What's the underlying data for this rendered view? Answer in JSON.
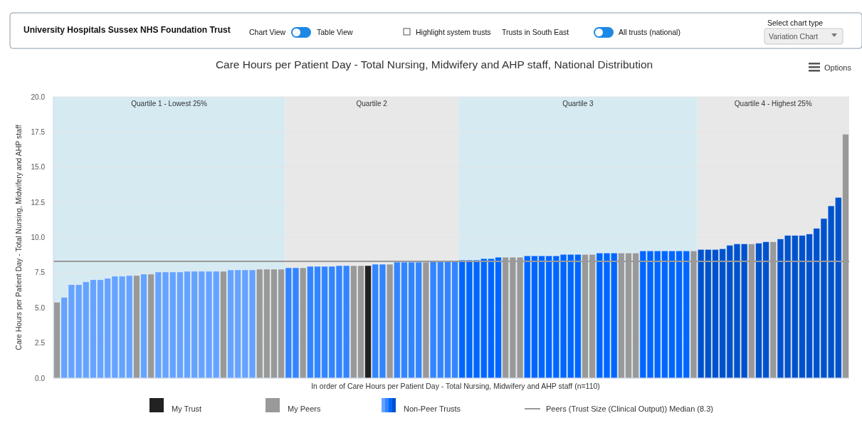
{
  "chart_data": {
    "type": "bar",
    "stacked": true,
    "title": "Care Hours per Patient Day - Total Nursing, Midwifery and AHP staff, National Distribution",
    "xlabel": "In order of Care Hours per Patient Day - Total Nursing, Midwifery and AHP staff (n=110)",
    "ylabel": "Care Hours per Patient Day - Total Nursing, Midwifery and AHP staff",
    "categories": [
      null,
      null,
      null,
      null,
      null,
      null,
      null,
      null,
      null,
      null,
      null,
      null,
      null,
      null,
      null,
      null,
      null,
      null,
      null,
      null,
      null,
      null,
      null,
      null,
      null,
      null,
      null,
      null,
      null,
      null,
      null,
      null,
      null,
      null,
      null,
      null,
      null,
      null,
      null,
      null,
      null,
      null,
      null,
      null,
      null,
      null,
      null,
      null,
      null,
      null,
      null,
      null,
      null,
      null,
      null,
      null,
      null,
      null,
      null,
      null,
      null,
      null,
      null,
      null,
      null,
      null,
      null,
      null,
      null,
      null,
      null,
      null,
      null,
      null,
      null,
      null,
      null,
      null,
      null,
      null,
      null,
      null,
      null,
      null,
      null,
      null,
      null,
      null,
      null,
      null,
      null,
      null,
      null,
      null,
      null,
      null,
      null,
      null,
      null,
      null,
      null,
      null,
      null,
      null,
      null,
      null,
      null,
      null,
      null,
      null
    ],
    "series": [
      {
        "name": "My Trust",
        "color": "#222222",
        "values": [
          null,
          null,
          null,
          null,
          null,
          null,
          null,
          null,
          null,
          null,
          null,
          null,
          null,
          null,
          null,
          null,
          null,
          null,
          null,
          null,
          null,
          null,
          null,
          null,
          null,
          null,
          null,
          null,
          null,
          null,
          null,
          null,
          null,
          null,
          null,
          null,
          null,
          null,
          null,
          null,
          null,
          null,
          null,
          8.0,
          null,
          null,
          null,
          null,
          null,
          null,
          null,
          null,
          null,
          null,
          null,
          null,
          null,
          null,
          null,
          null,
          null,
          null,
          null,
          null,
          null,
          null,
          null,
          null,
          null,
          null,
          null,
          null,
          null,
          null,
          null,
          null,
          null,
          null,
          null,
          null,
          null,
          null,
          null,
          null,
          null,
          null,
          null,
          null,
          null,
          null,
          null,
          null,
          null,
          null,
          null,
          null,
          null,
          null,
          null,
          null,
          null,
          null,
          null,
          null,
          null,
          null,
          null,
          null,
          null,
          null
        ]
      },
      {
        "name": "My Peers",
        "color": "#999999",
        "values": [
          5.4,
          null,
          null,
          null,
          null,
          null,
          null,
          null,
          null,
          null,
          null,
          7.3,
          null,
          7.4,
          null,
          null,
          null,
          null,
          null,
          null,
          null,
          null,
          null,
          7.6,
          null,
          null,
          null,
          null,
          7.75,
          7.75,
          7.75,
          7.75,
          null,
          null,
          7.85,
          null,
          null,
          null,
          null,
          null,
          null,
          8.0,
          8.0,
          null,
          null,
          null,
          8.1,
          null,
          null,
          null,
          null,
          8.25,
          null,
          null,
          null,
          null,
          null,
          null,
          null,
          null,
          null,
          null,
          8.6,
          8.6,
          8.6,
          null,
          null,
          null,
          null,
          null,
          null,
          null,
          null,
          8.8,
          8.8,
          null,
          null,
          null,
          8.9,
          8.9,
          8.9,
          null,
          null,
          null,
          null,
          null,
          null,
          null,
          9.05,
          null,
          null,
          null,
          null,
          null,
          null,
          null,
          9.55,
          null,
          null,
          9.7,
          null,
          null,
          null,
          null,
          null,
          null,
          null,
          null,
          null,
          17.35
        ]
      },
      {
        "name": "Non-Peer Trusts",
        "colors": [
          "#66a3ff",
          "#66a3ff",
          "#66a3ff",
          "#66a3ff",
          "#66a3ff",
          "#66a3ff",
          "#66a3ff",
          "#66a3ff",
          "#66a3ff",
          "#66a3ff",
          "#66a3ff",
          "#66a3ff",
          "#66a3ff",
          "#66a3ff",
          "#66a3ff",
          "#66a3ff",
          "#66a3ff",
          "#66a3ff",
          "#66a3ff",
          "#66a3ff",
          "#66a3ff",
          "#66a3ff",
          "#66a3ff",
          "#66a3ff",
          "#66a3ff",
          "#66a3ff",
          "#66a3ff",
          "#66a3ff",
          "#66a3ff",
          "#66a3ff",
          "#66a3ff",
          "#66a3ff",
          "#3385ff",
          "#3385ff",
          "#3385ff",
          "#3385ff",
          "#3385ff",
          "#3385ff",
          "#3385ff",
          "#3385ff",
          "#3385ff",
          "#3385ff",
          "#3385ff",
          "#3385ff",
          "#3385ff",
          "#3385ff",
          "#3385ff",
          "#3385ff",
          "#3385ff",
          "#3385ff",
          "#3385ff",
          "#3385ff",
          "#3385ff",
          "#3385ff",
          "#3385ff",
          "#3385ff",
          "#0066ff",
          "#0066ff",
          "#0066ff",
          "#0066ff",
          "#0066ff",
          "#0066ff",
          "#0066ff",
          "#0066ff",
          "#0066ff",
          "#0066ff",
          "#0066ff",
          "#0066ff",
          "#0066ff",
          "#0066ff",
          "#0066ff",
          "#0066ff",
          "#0066ff",
          "#0066ff",
          "#0066ff",
          "#0066ff",
          "#0066ff",
          "#0066ff",
          "#0066ff",
          "#0066ff",
          "#0066ff",
          "#0066ff",
          "#0066ff",
          "#0066ff",
          "#0066ff",
          "#0066ff",
          "#0066ff",
          "#0066ff",
          "#0066ff",
          "#0052cc",
          "#0052cc",
          "#0052cc",
          "#0052cc",
          "#0052cc",
          "#0052cc",
          "#0052cc",
          "#0052cc",
          "#0052cc",
          "#0052cc",
          "#0052cc",
          "#0052cc",
          "#0052cc",
          "#0052cc",
          "#0052cc",
          "#0052cc",
          "#0052cc",
          "#0052cc",
          "#0052cc",
          "#0052cc",
          "#0052cc"
        ],
        "values": [
          null,
          5.75,
          6.65,
          6.65,
          6.85,
          7.0,
          7.0,
          7.1,
          7.25,
          7.25,
          7.3,
          null,
          7.4,
          null,
          7.55,
          7.55,
          7.55,
          7.55,
          7.6,
          7.6,
          7.6,
          7.6,
          7.6,
          null,
          7.7,
          7.7,
          7.7,
          7.7,
          null,
          null,
          null,
          null,
          7.85,
          7.85,
          null,
          7.95,
          7.95,
          7.95,
          7.95,
          8.0,
          8.0,
          null,
          null,
          null,
          8.1,
          8.1,
          null,
          8.25,
          8.25,
          8.25,
          8.25,
          null,
          8.3,
          8.3,
          8.3,
          8.3,
          8.4,
          8.4,
          8.4,
          8.5,
          8.5,
          8.6,
          null,
          null,
          null,
          8.7,
          8.7,
          8.7,
          8.7,
          8.7,
          8.8,
          8.8,
          8.8,
          null,
          null,
          8.9,
          8.9,
          8.9,
          null,
          null,
          null,
          9.05,
          9.05,
          9.05,
          9.05,
          9.05,
          9.05,
          9.05,
          null,
          9.15,
          9.15,
          9.15,
          9.2,
          9.45,
          9.55,
          9.55,
          null,
          9.6,
          9.7,
          null,
          9.9,
          10.15,
          10.15,
          10.15,
          10.25,
          10.65,
          11.35,
          12.25,
          12.85,
          null
        ]
      }
    ],
    "ylim": [
      0,
      20
    ],
    "yticks": [
      {
        "value": 0,
        "label": "0.0"
      },
      {
        "value": 2.5,
        "label": "2.5"
      },
      {
        "value": 5,
        "label": "5.0"
      },
      {
        "value": 7.5,
        "label": "7.5"
      },
      {
        "value": 10,
        "label": "10.0"
      },
      {
        "value": 12.5,
        "label": "12.5"
      },
      {
        "value": 15,
        "label": "15.0"
      },
      {
        "value": 17.5,
        "label": "17.5"
      },
      {
        "value": 20,
        "label": "20.0"
      }
    ],
    "grid": "y",
    "ref_lines": [
      {
        "axis": "y",
        "value": 8.3,
        "label": "Peers (Trust Size (Clinical Output)) Median (8.3)",
        "color": "#999999"
      }
    ],
    "legend": "bottom",
    "annotations": [
      "University Hospitals Sussex NHS Foundation Trust",
      "Chart View",
      "Table View",
      "Highlight system trusts",
      "Trusts in South East",
      "All trusts (national)",
      "Select chart type",
      "Variation Chart",
      "Options",
      "Quartile 1 - Lowest 25%",
      "Quartile 2",
      "Quartile 3",
      "Quartile 4 - Highest 25%"
    ]
  }
}
